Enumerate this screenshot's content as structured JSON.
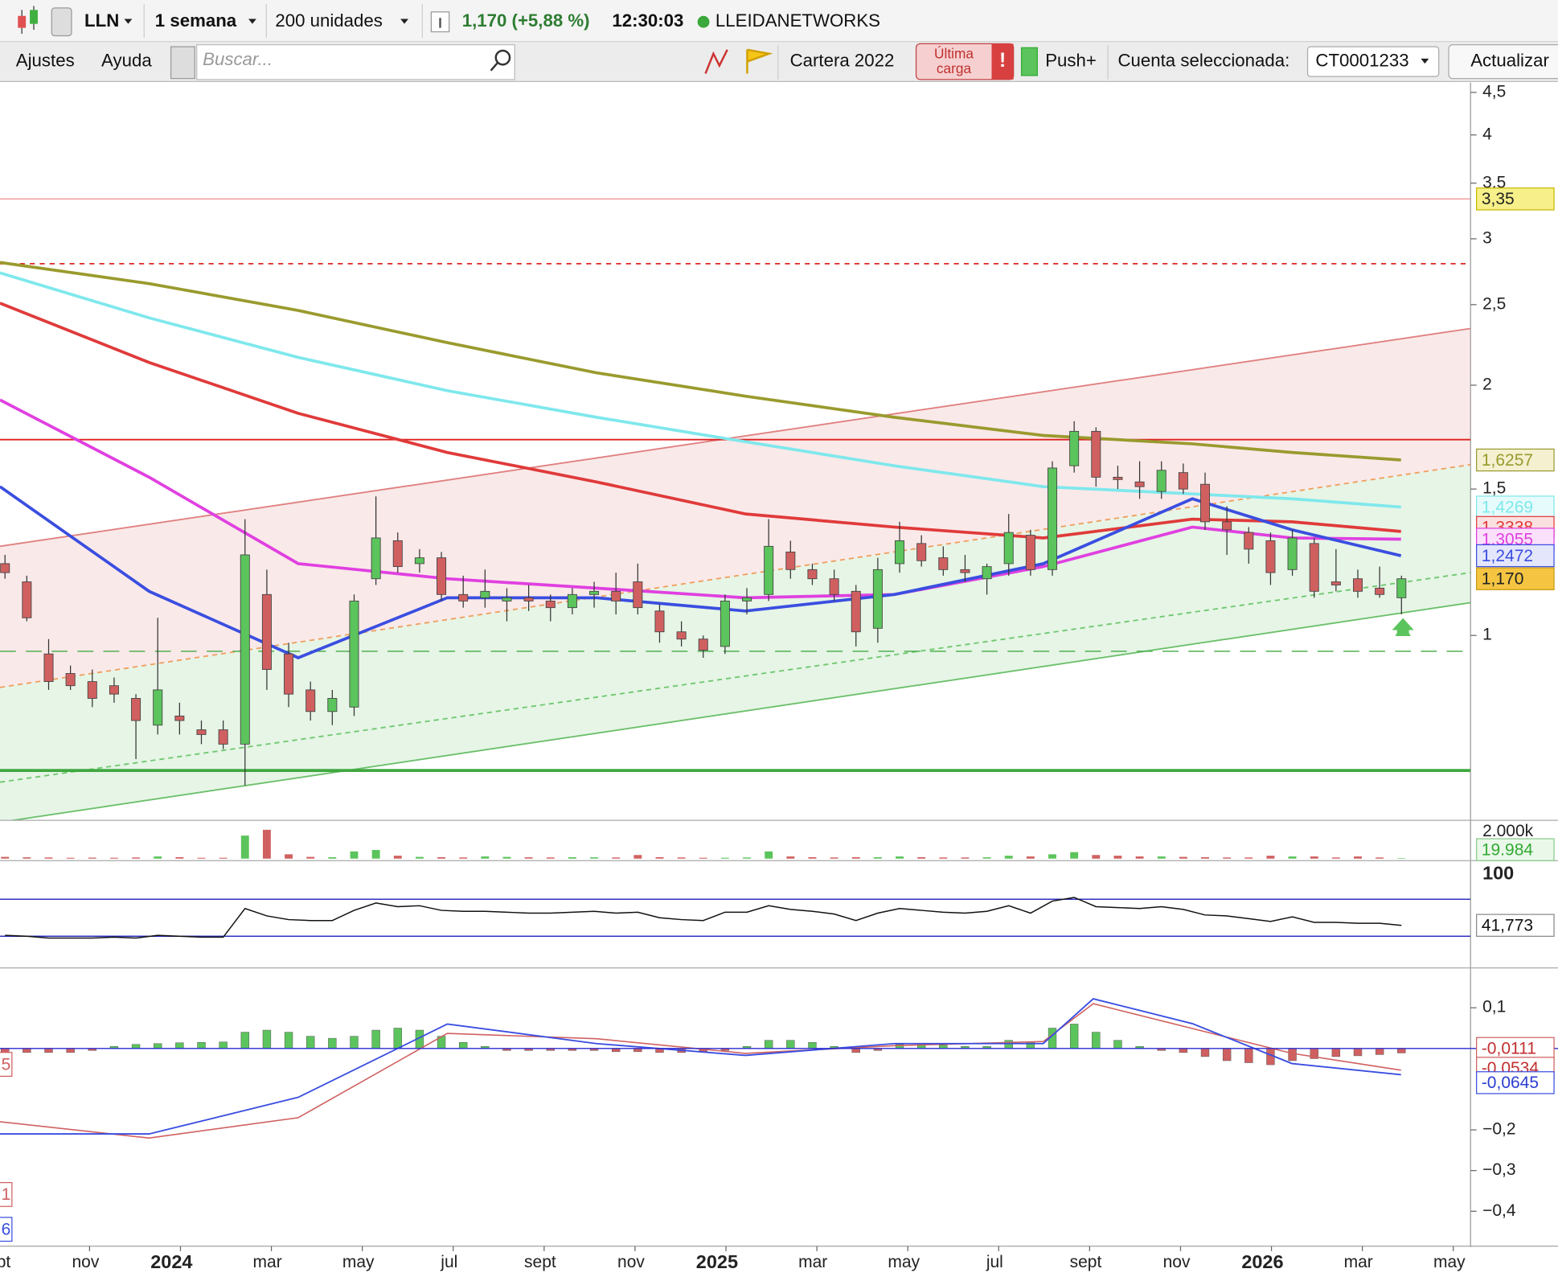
{
  "toolbar": {
    "symbol": "LLN",
    "period": "1 semana",
    "units": "200 unidades",
    "price_change": "1,170 (+5,88 %)",
    "time": "12:30:03",
    "name": "LLEIDANETWORKS",
    "menu": [
      "Ajustes",
      "Ayuda"
    ],
    "search_placeholder": "Buscar...",
    "portfolio": "Cartera 2022",
    "last_load": [
      "Última",
      "carga"
    ],
    "push": "Push+",
    "account_label": "Cuenta seleccionada:",
    "account": "CT0001233",
    "update": "Actualizar"
  },
  "chart_data": {
    "type": "candlestick",
    "log_scale": true,
    "up_color": "#5cc45c",
    "down_color": "#d06060",
    "xlim": [
      -1.97,
      30.38
    ],
    "xticks": [
      {
        "value": -2,
        "label": "sept"
      },
      {
        "value": 0,
        "label": "nov"
      },
      {
        "value": 2,
        "label": "2024"
      },
      {
        "value": 4,
        "label": "mar"
      },
      {
        "value": 6,
        "label": "may"
      },
      {
        "value": 8,
        "label": "jul"
      },
      {
        "value": 10,
        "label": "sept"
      },
      {
        "value": 12,
        "label": "nov"
      },
      {
        "value": 14,
        "label": "2025"
      },
      {
        "value": 16,
        "label": "mar"
      },
      {
        "value": 18,
        "label": "may"
      },
      {
        "value": 20,
        "label": "jul"
      },
      {
        "value": 22,
        "label": "sept"
      },
      {
        "value": 24,
        "label": "nov"
      },
      {
        "value": 26,
        "label": "2026"
      },
      {
        "value": 28,
        "label": "mar"
      },
      {
        "value": 30,
        "label": "may"
      }
    ],
    "ylim": [
      0.6,
      4.6
    ],
    "yticks": [
      {
        "value": 4.5,
        "label": "4,5"
      },
      4,
      {
        "value": 3.5,
        "label": "3,5"
      },
      3,
      {
        "value": 2.5,
        "label": "2,5"
      },
      2,
      {
        "value": 1.5,
        "label": "1,5"
      },
      1
    ],
    "x": [
      -1.86,
      -1.38,
      -0.9,
      -0.42,
      0.06,
      0.54,
      1.02,
      1.5,
      1.98,
      2.46,
      2.94,
      3.42,
      3.9,
      4.38,
      4.86,
      5.34,
      5.82,
      6.3,
      6.78,
      7.26,
      7.74,
      8.22,
      8.7,
      9.18,
      9.66,
      10.14,
      10.62,
      11.1,
      11.58,
      12.06,
      12.54,
      13.02,
      13.5,
      13.98,
      14.46,
      14.94,
      15.42,
      15.9,
      16.38,
      16.86,
      17.34,
      17.82,
      18.3,
      18.78,
      19.26,
      19.74,
      20.22,
      20.7,
      21.18,
      21.66,
      22.14,
      22.62,
      23.1,
      23.58,
      24.06,
      24.54,
      25.02,
      25.5,
      25.98,
      26.46,
      26.94,
      27.42,
      27.9,
      28.38,
      28.86
    ],
    "open": [
      1.22,
      1.16,
      0.95,
      0.9,
      0.88,
      0.87,
      0.84,
      0.78,
      0.8,
      0.77,
      0.77,
      0.74,
      1.12,
      0.95,
      0.86,
      0.81,
      0.82,
      1.17,
      1.3,
      1.22,
      1.24,
      1.12,
      1.11,
      1.1,
      1.11,
      1.1,
      1.08,
      1.12,
      1.13,
      1.16,
      1.07,
      1.01,
      0.99,
      0.97,
      1.1,
      1.12,
      1.26,
      1.2,
      1.17,
      1.13,
      1.02,
      1.22,
      1.29,
      1.24,
      1.2,
      1.17,
      1.22,
      1.32,
      1.2,
      1.6,
      1.76,
      1.55,
      1.53,
      1.49,
      1.57,
      1.52,
      1.37,
      1.33,
      1.3,
      1.2,
      1.29,
      1.16,
      1.17,
      1.14,
      1.11
    ],
    "high": [
      1.25,
      1.18,
      0.99,
      0.92,
      0.91,
      0.89,
      0.85,
      1.05,
      0.83,
      0.79,
      0.79,
      1.38,
      1.2,
      0.98,
      0.88,
      0.86,
      1.12,
      1.47,
      1.33,
      1.27,
      1.26,
      1.18,
      1.2,
      1.14,
      1.15,
      1.12,
      1.14,
      1.16,
      1.19,
      1.22,
      1.09,
      1.04,
      1.0,
      1.12,
      1.14,
      1.38,
      1.3,
      1.22,
      1.2,
      1.15,
      1.24,
      1.37,
      1.32,
      1.28,
      1.25,
      1.22,
      1.4,
      1.34,
      1.62,
      1.81,
      1.78,
      1.6,
      1.62,
      1.62,
      1.61,
      1.57,
      1.43,
      1.35,
      1.33,
      1.34,
      1.31,
      1.27,
      1.2,
      1.21,
      1.18
    ],
    "low": [
      1.17,
      1.04,
      0.86,
      0.86,
      0.82,
      0.83,
      0.71,
      0.76,
      0.76,
      0.74,
      0.73,
      0.66,
      0.86,
      0.82,
      0.79,
      0.78,
      0.8,
      1.15,
      1.19,
      1.19,
      1.1,
      1.08,
      1.08,
      1.04,
      1.07,
      1.04,
      1.06,
      1.08,
      1.06,
      1.06,
      0.98,
      0.97,
      0.94,
      0.95,
      1.06,
      1.1,
      1.17,
      1.15,
      1.1,
      0.97,
      0.98,
      1.19,
      1.21,
      1.18,
      1.16,
      1.12,
      1.18,
      1.18,
      1.18,
      1.57,
      1.51,
      1.5,
      1.46,
      1.46,
      1.48,
      1.34,
      1.25,
      1.22,
      1.15,
      1.18,
      1.11,
      1.13,
      1.11,
      1.11,
      1.06
    ],
    "close": [
      1.19,
      1.05,
      0.88,
      0.87,
      0.84,
      0.85,
      0.79,
      0.86,
      0.79,
      0.76,
      0.74,
      1.25,
      0.91,
      0.85,
      0.81,
      0.84,
      1.1,
      1.31,
      1.21,
      1.24,
      1.12,
      1.1,
      1.13,
      1.11,
      1.1,
      1.08,
      1.12,
      1.13,
      1.1,
      1.08,
      1.01,
      0.99,
      0.96,
      1.1,
      1.11,
      1.28,
      1.2,
      1.17,
      1.12,
      1.01,
      1.2,
      1.3,
      1.23,
      1.2,
      1.19,
      1.21,
      1.33,
      1.2,
      1.59,
      1.76,
      1.55,
      1.54,
      1.51,
      1.58,
      1.5,
      1.37,
      1.34,
      1.27,
      1.19,
      1.31,
      1.13,
      1.15,
      1.13,
      1.12,
      1.17
    ],
    "last_label": "1,170",
    "moving_averages": {
      "x": [
        -1.97,
        1.31,
        4.59,
        7.87,
        11.15,
        14.43,
        17.7,
        20.98,
        24.26,
        26.45,
        28.85
      ],
      "series": [
        {
          "color": "#9a9a2e",
          "values": [
            2.81,
            2.65,
            2.46,
            2.25,
            2.07,
            1.94,
            1.83,
            1.74,
            1.7,
            1.66,
            1.6257
          ],
          "last_label": "1,6257"
        },
        {
          "color": "#7fe8ec",
          "values": [
            2.73,
            2.41,
            2.16,
            1.97,
            1.83,
            1.71,
            1.6,
            1.51,
            1.48,
            1.46,
            1.4269
          ],
          "last_label": "1,4269"
        },
        {
          "color": "#e03a3a",
          "values": [
            2.51,
            2.13,
            1.85,
            1.66,
            1.53,
            1.4,
            1.35,
            1.31,
            1.38,
            1.37,
            1.3338
          ],
          "last_label": "1,3338"
        },
        {
          "color": "#e040e0",
          "values": [
            1.92,
            1.55,
            1.22,
            1.17,
            1.14,
            1.11,
            1.12,
            1.21,
            1.35,
            1.31,
            1.3055
          ],
          "last_label": "1,3055"
        },
        {
          "color": "#3a4ee0",
          "values": [
            1.51,
            1.13,
            0.94,
            1.11,
            1.11,
            1.07,
            1.12,
            1.22,
            1.46,
            1.34,
            1.2472
          ],
          "last_label": "1,2472"
        }
      ]
    },
    "channels": [
      {
        "color": "#e08080",
        "x": [
          -1.97,
          30.38
        ],
        "values": [
          1.28,
          2.34
        ],
        "dashed": false
      },
      {
        "color": "#f0a060",
        "x": [
          -1.97,
          30.38
        ],
        "values": [
          0.866,
          1.605
        ],
        "dashed": true
      },
      {
        "color": "#70c870",
        "x": [
          -1.97,
          30.38
        ],
        "values": [
          0.666,
          1.19
        ],
        "dashed": true
      },
      {
        "color": "#6cc06c",
        "x": [
          -1.97,
          30.38
        ],
        "values": [
          0.596,
          1.095
        ],
        "dashed": false
      }
    ],
    "hlines": [
      {
        "value": 3.35,
        "color": "#f08a8a",
        "dashed": false,
        "width": 1,
        "label": "3,35"
      },
      {
        "value": 2.8,
        "color": "#e03030",
        "dashed": true,
        "width": 1.5
      },
      {
        "value": 1.72,
        "color": "#e02020",
        "dashed": false,
        "width": 1.5
      },
      {
        "value": 0.957,
        "color": "#50b050",
        "dashed": true,
        "width": 1.2
      },
      {
        "value": 0.688,
        "color": "#40a840",
        "dashed": false,
        "width": 3
      }
    ],
    "volume": {
      "ylim": [
        0,
        2000
      ],
      "yticks": [
        {
          "value": 2000,
          "label": "2.000k"
        }
      ],
      "values": [
        120,
        90,
        80,
        60,
        70,
        60,
        80,
        150,
        100,
        60,
        60,
        1600,
        2000,
        300,
        120,
        100,
        500,
        600,
        200,
        120,
        100,
        80,
        150,
        120,
        90,
        80,
        100,
        90,
        80,
        250,
        100,
        80,
        60,
        60,
        80,
        500,
        150,
        100,
        80,
        100,
        100,
        150,
        100,
        80,
        80,
        90,
        200,
        150,
        300,
        450,
        250,
        200,
        150,
        150,
        120,
        100,
        80,
        80,
        200,
        150,
        150,
        80,
        150,
        80,
        19.984
      ],
      "last_label": "19.984"
    },
    "rsi": {
      "ylim": [
        0,
        100
      ],
      "yticks": [
        100
      ],
      "bands": [
        30,
        70
      ],
      "values": [
        31,
        30,
        28,
        28,
        28,
        29,
        28,
        31,
        30,
        29,
        29,
        60,
        52,
        48,
        47,
        47,
        58,
        66,
        62,
        63,
        58,
        57,
        57,
        56,
        55,
        55,
        56,
        57,
        55,
        56,
        50,
        48,
        47,
        56,
        56,
        63,
        59,
        57,
        54,
        47,
        55,
        60,
        58,
        56,
        55,
        57,
        63,
        55,
        68,
        72,
        62,
        61,
        60,
        62,
        59,
        53,
        52,
        49,
        46,
        51,
        45,
        45,
        44,
        44,
        41.773
      ],
      "last_label": "41,773"
    },
    "macd": {
      "ylim": [
        -0.476,
        0.171
      ],
      "yticks": [
        {
          "value": 0.1,
          "label": "0,1"
        },
        {
          "value": -0.2,
          "label": "−0,2"
        },
        {
          "value": -0.3,
          "label": "−0,3"
        },
        {
          "value": -0.4,
          "label": "−0,4"
        }
      ],
      "x": [
        -1.97,
        1.31,
        4.59,
        7.87,
        11.15,
        14.43,
        17.7,
        20.98,
        22.08,
        24.26,
        26.45,
        28.85
      ],
      "macd": [
        -0.21,
        -0.21,
        -0.12,
        0.06,
        0.012,
        -0.017,
        0.012,
        0.012,
        0.122,
        0.061,
        -0.037,
        -0.0645
      ],
      "signal": [
        -0.18,
        -0.22,
        -0.17,
        0.037,
        0.024,
        -0.012,
        0.007,
        0.017,
        0.11,
        0.049,
        -0.012,
        -0.0534
      ],
      "histogram": [
        -0.01,
        -0.01,
        -0.01,
        -0.01,
        -0.005,
        0.005,
        0.01,
        0.012,
        0.014,
        0.015,
        0.016,
        0.04,
        0.045,
        0.04,
        0.03,
        0.025,
        0.03,
        0.045,
        0.05,
        0.045,
        0.03,
        0.015,
        0.005,
        -0.005,
        -0.005,
        -0.005,
        -0.005,
        -0.005,
        -0.008,
        -0.008,
        -0.01,
        -0.01,
        -0.008,
        -0.005,
        0.005,
        0.02,
        0.02,
        0.015,
        0.005,
        -0.01,
        -0.005,
        0.01,
        0.012,
        0.008,
        0.005,
        0.005,
        0.02,
        0.015,
        0.05,
        0.06,
        0.04,
        0.02,
        0.005,
        -0.005,
        -0.01,
        -0.02,
        -0.03,
        -0.035,
        -0.04,
        -0.03,
        -0.025,
        -0.02,
        -0.018,
        -0.015,
        -0.0111
      ],
      "histogram_label": "-0,0111",
      "signal_label": "-0,0534",
      "macd_label": "-0,0645",
      "cut_labels": [
        "5",
        "1",
        "6"
      ]
    }
  }
}
